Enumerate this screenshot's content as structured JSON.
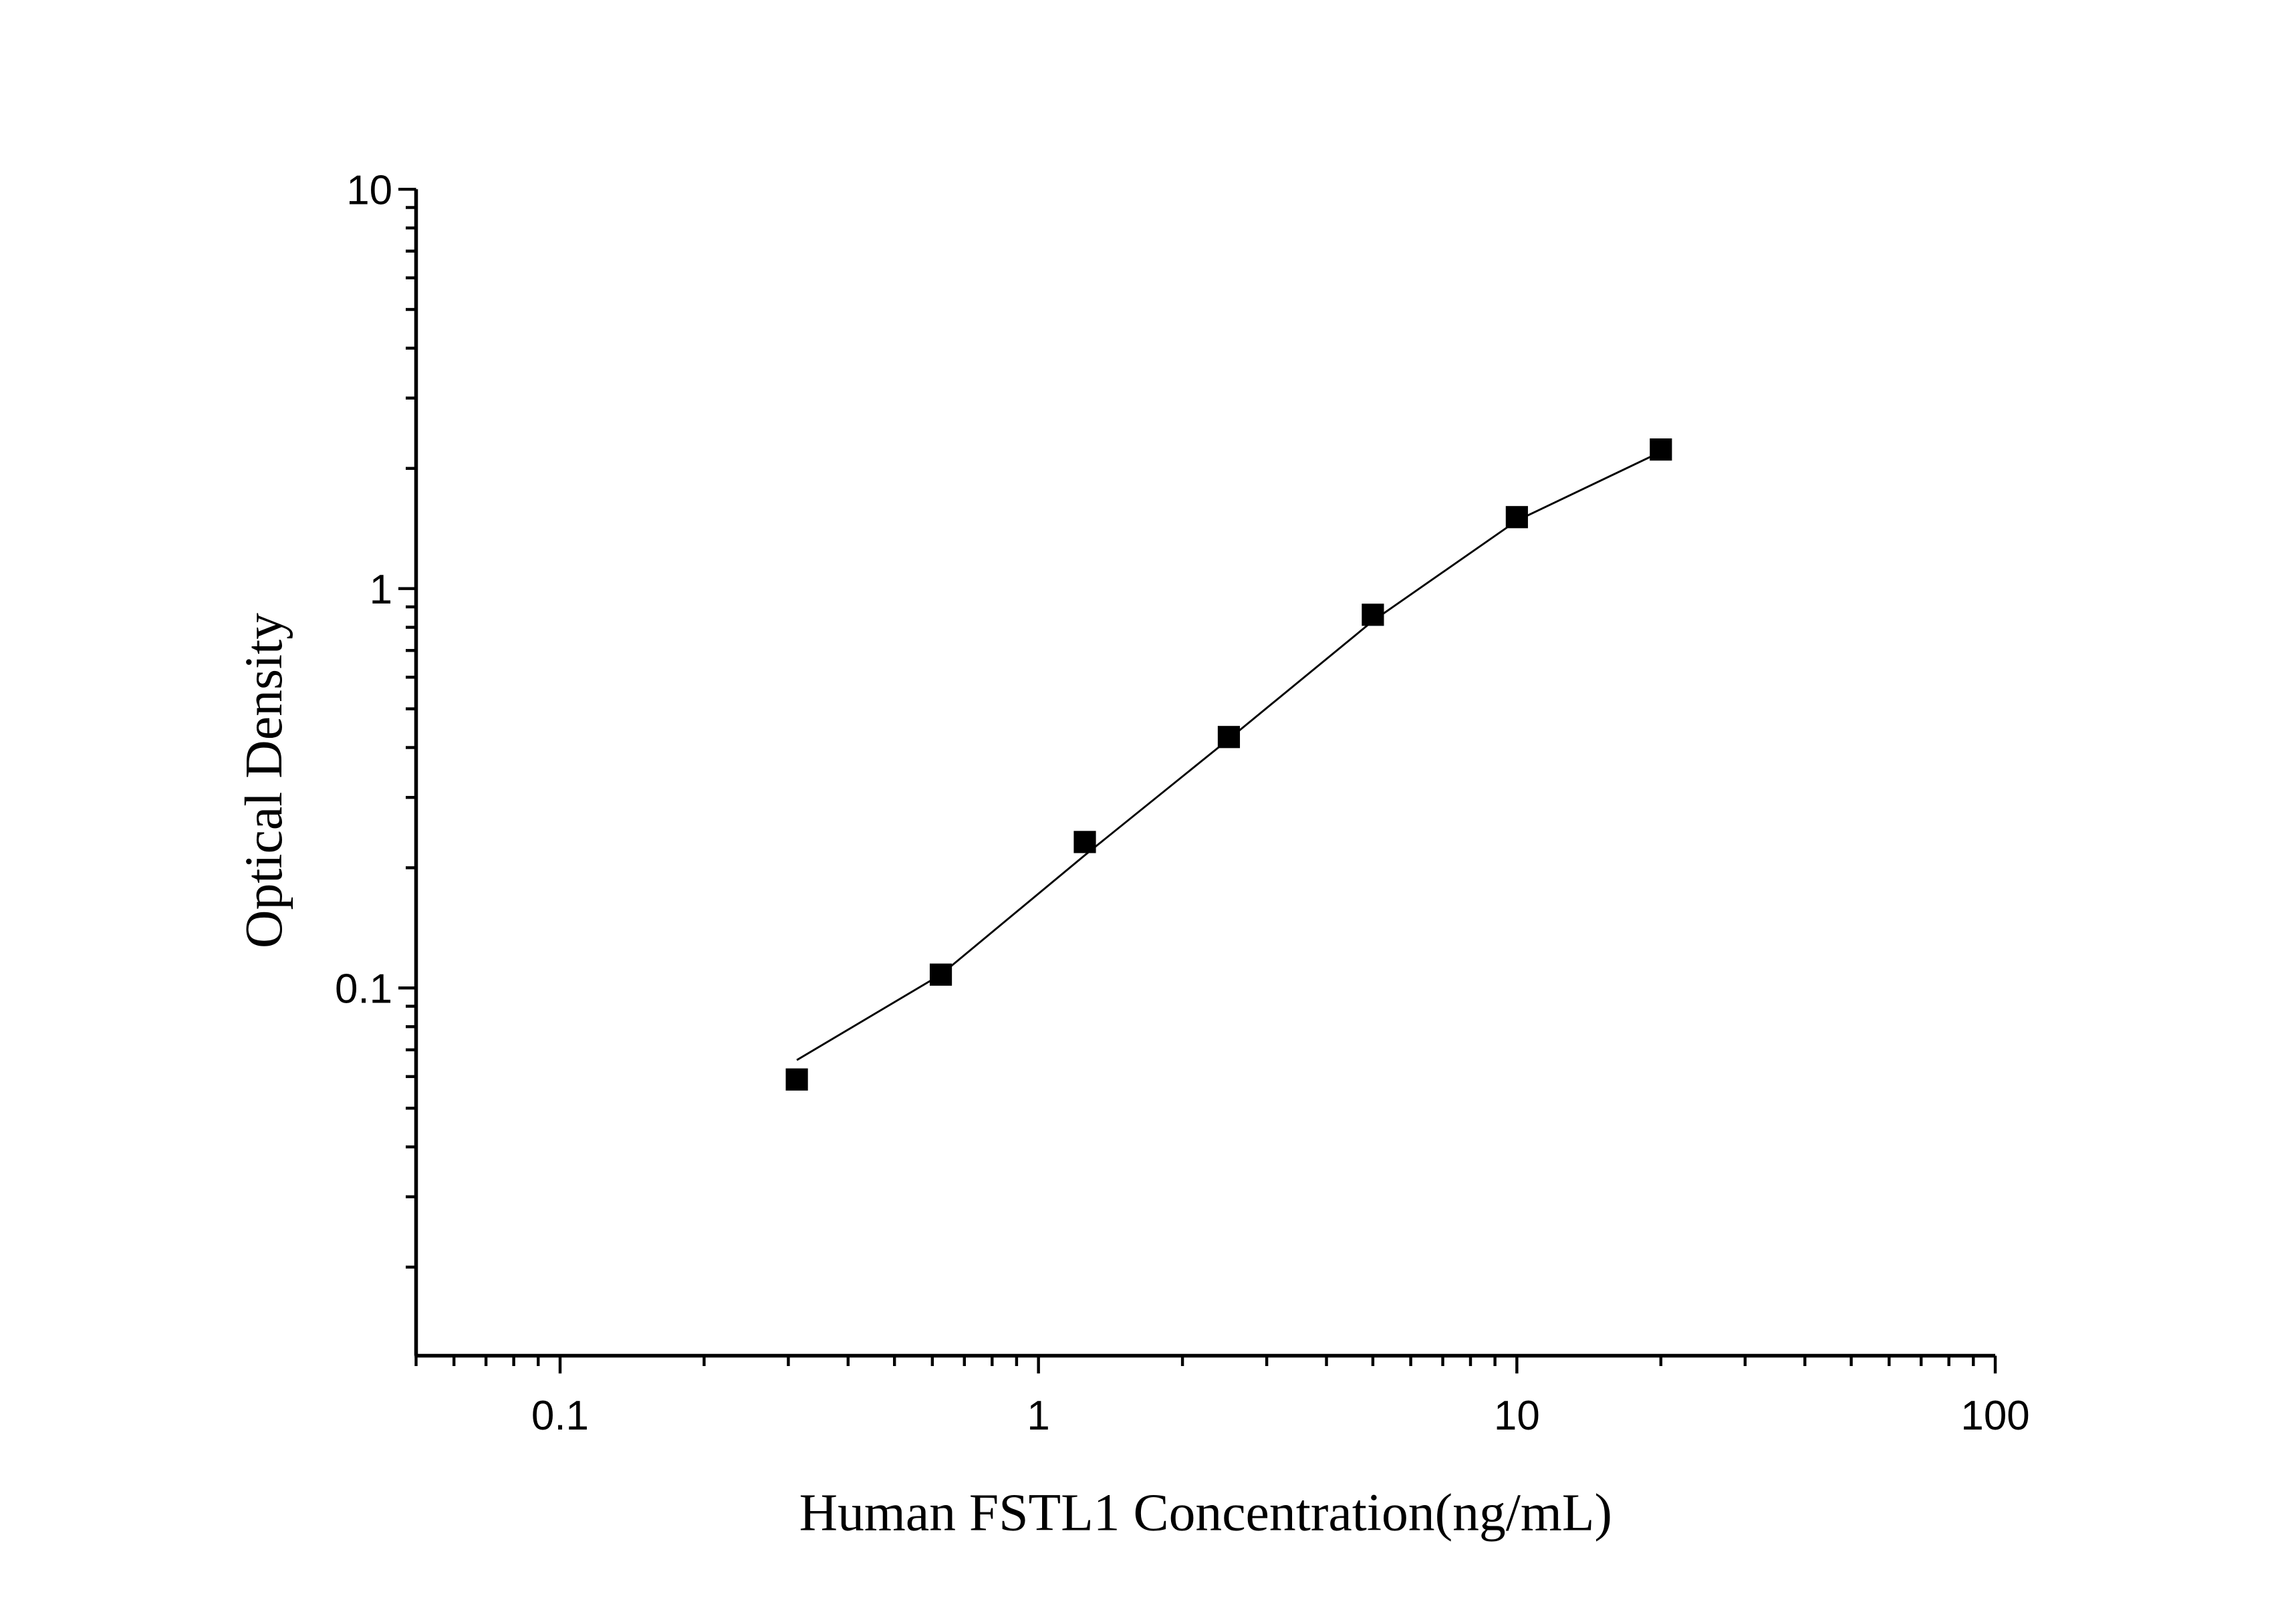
{
  "chart_data": {
    "type": "scatter",
    "title": "",
    "xlabel": "Human FSTL1 Concentration(ng/mL)",
    "ylabel": "Optical Density",
    "x_scale": "log",
    "y_scale": "log",
    "xlim": [
      0.05,
      100
    ],
    "ylim": [
      0.012,
      10
    ],
    "x_ticks": [
      {
        "v": 0.1,
        "label": "0.1"
      },
      {
        "v": 1,
        "label": "1"
      },
      {
        "v": 10,
        "label": "10"
      },
      {
        "v": 100,
        "label": "100"
      }
    ],
    "y_ticks": [
      {
        "v": 0.1,
        "label": "0.1"
      },
      {
        "v": 1,
        "label": "1"
      },
      {
        "v": 10,
        "label": "10"
      }
    ],
    "grid": false,
    "marker": "square",
    "color": "#000000",
    "points": {
      "x": [
        0.3125,
        0.625,
        1.25,
        2.5,
        5,
        10,
        20
      ],
      "y": [
        0.059,
        0.108,
        0.232,
        0.425,
        0.86,
        1.51,
        2.23
      ]
    },
    "fit_curve": {
      "x": [
        0.3125,
        0.625,
        1.25,
        2.5,
        5,
        10,
        20
      ],
      "y": [
        0.066,
        0.108,
        0.215,
        0.42,
        0.83,
        1.48,
        2.2
      ]
    }
  }
}
